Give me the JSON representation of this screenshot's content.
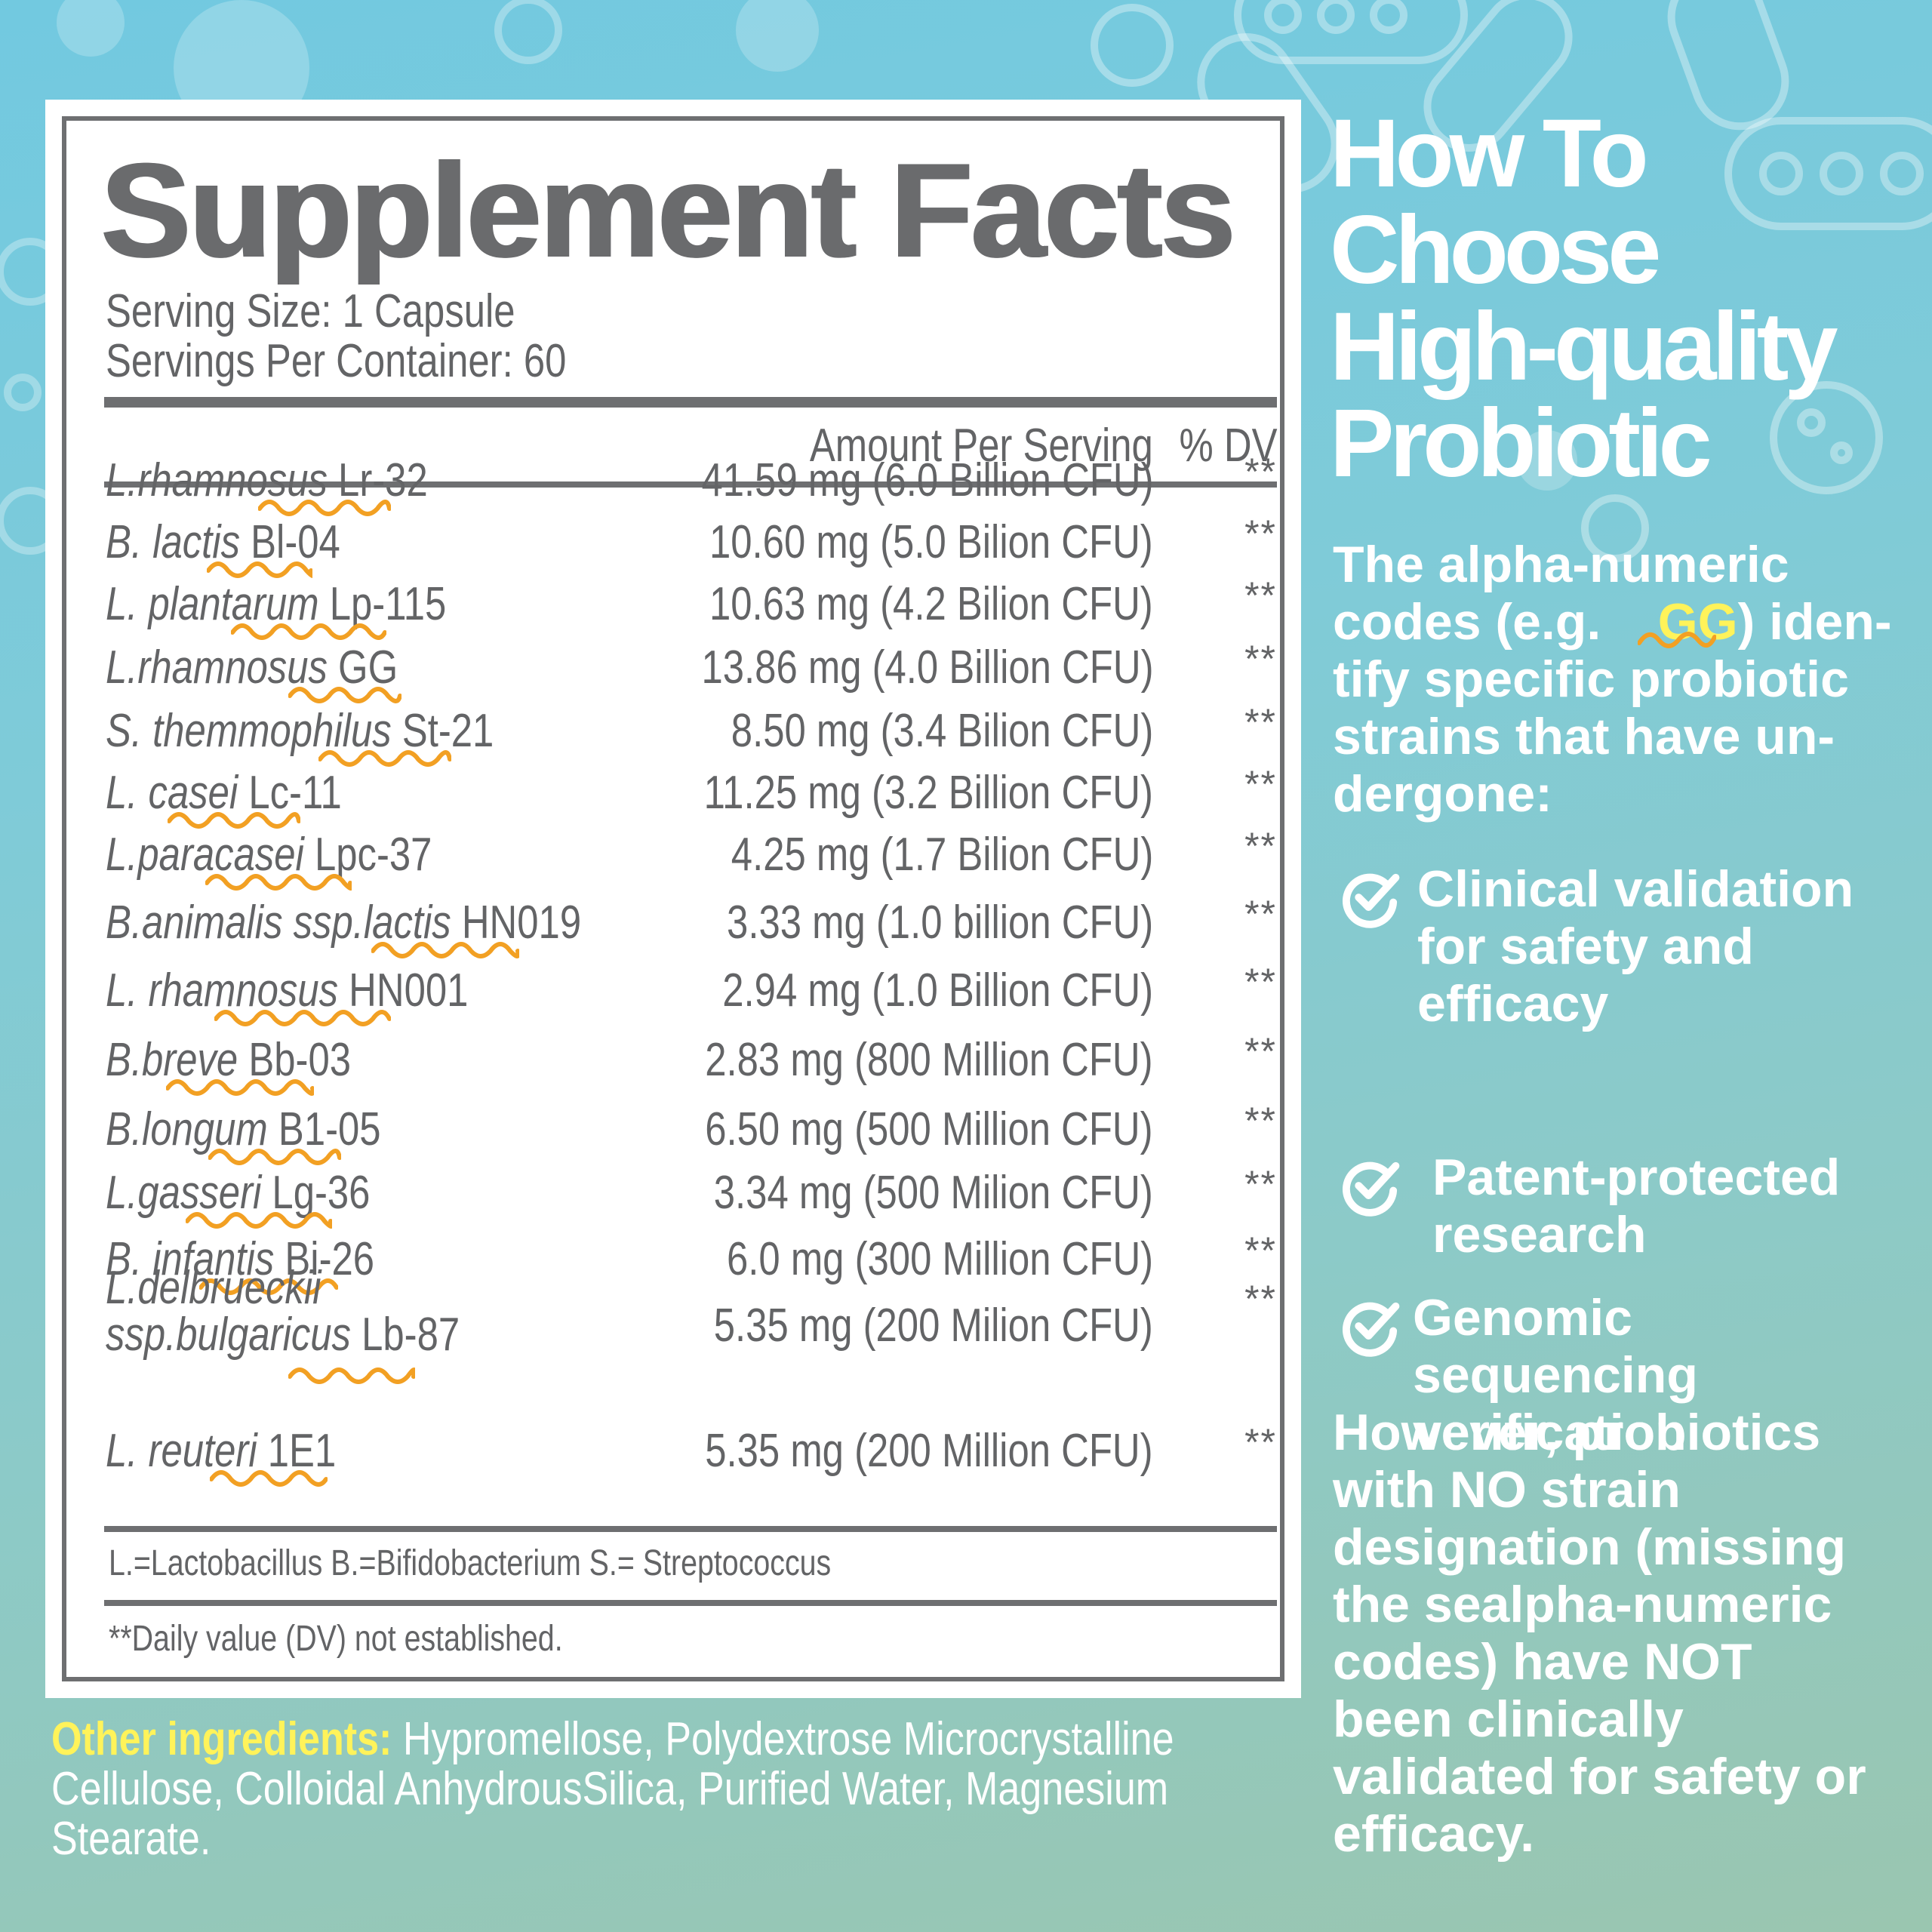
{
  "facts": {
    "title": "Supplement Facts",
    "serving_size": "Serving Size: 1 Capsule",
    "servings_per_container": "Servings Per Container: 60",
    "col_amount": "Amount Per Serving",
    "col_dv": "% DV",
    "rows": [
      {
        "species": "L.rhamnosus",
        "strain": "Lr-32",
        "amount": "41.59 mg (6.0 Billion CFU)",
        "dv": "**"
      },
      {
        "species": "B. lactis",
        "strain": "Bl-04",
        "amount": "10.60 mg (5.0 Bilion CFU)",
        "dv": "**"
      },
      {
        "species": "L. plantarum",
        "strain": "Lp-115",
        "amount": "10.63 mg (4.2 Bilion CFU)",
        "dv": "**"
      },
      {
        "species": "L.rhamnosus",
        "strain": "GG",
        "amount": "13.86 mg (4.0 Billion CFU)",
        "dv": "**"
      },
      {
        "species": "S. themmophilus",
        "strain": "St-21",
        "amount": "8.50 mg (3.4 Bilion CFU)",
        "dv": "**"
      },
      {
        "species": "L. casei",
        "strain": "Lc-11",
        "amount": "11.25 mg (3.2 Billion CFU)",
        "dv": "**"
      },
      {
        "species": "L.paracasei",
        "strain": "Lpc-37",
        "amount": "4.25 mg (1.7 Bilion CFU)",
        "dv": "**"
      },
      {
        "species": "B.animalis ssp.lactis",
        "strain": "HN019",
        "amount": "3.33 mg (1.0 billion CFU)",
        "dv": "**"
      },
      {
        "species": "L. rhamnosus",
        "strain": "HN001",
        "amount": "2.94 mg (1.0 Billion CFU)",
        "dv": "**"
      },
      {
        "species": "B.breve",
        "strain": "Bb-03",
        "amount": "2.83 mg (800 Million CFU)",
        "dv": "**"
      },
      {
        "species": "B.longum",
        "strain": "B1-05",
        "amount": "6.50 mg (500 Million CFU)",
        "dv": "**"
      },
      {
        "species": "L.gasseri",
        "strain": "Lg-36",
        "amount": "3.34 mg (500 Milion CFU)",
        "dv": "**"
      },
      {
        "species": "B. infantis",
        "strain": "Bi-26",
        "amount": "6.0 mg (300 Million CFU)",
        "dv": "**"
      },
      {
        "species": "L.delbrueckii",
        "species2": "ssp.bulgaricus",
        "strain": "Lb-87",
        "amount": "5.35 mg (200 Milion CFU)",
        "dv": "**"
      },
      {
        "species": "L. reuteri",
        "strain": "1E1",
        "amount": "5.35 mg (200 Million CFU)",
        "dv": "**"
      }
    ],
    "abbreviations": "L.=Lactobacillus B.=Bifidobacterium S.= Streptococcus",
    "footnote": "**Daily value (DV) not established."
  },
  "other_ingredients": {
    "label": "Other ingredients:",
    "line1": "Hypromellose, Polydextrose Microcrystalline",
    "line2": "Cellulose, Colloidal AnhydrousSilica, Purified Water, Magnesium",
    "line3": "Stearate."
  },
  "guide": {
    "title_lines": [
      "How To",
      "Choose",
      "High-quality",
      "Probiotic"
    ],
    "intro_1a": "The alpha-numeric",
    "intro_2a": "codes (e.g. ",
    "intro_2_highlight": "GG",
    "intro_2b": ") iden-",
    "intro_3": "tify specific probiotic",
    "intro_4": "strains that have un-",
    "intro_5": "dergone:",
    "checks": [
      {
        "lines": [
          "Clinical validation",
          "for safety and",
          "efficacy"
        ]
      },
      {
        "lines": [
          "Patent-protected",
          "research"
        ]
      },
      {
        "lines": [
          "Genomic",
          "sequencing",
          "verification"
        ]
      }
    ],
    "warning_lines": [
      "However, probiotics",
      "with NO strain",
      "designation (missing",
      "the sealpha-numeric",
      "codes) have NOT",
      "been clinically",
      "validated for safety or",
      "efficacy."
    ]
  },
  "colors": {
    "panel_gray": "#6e6f71",
    "squiggle": "#f2a023",
    "highlight_yellow": "#fff35a",
    "background_top": "#72c9e0",
    "background_bottom": "#9ac6b0"
  }
}
